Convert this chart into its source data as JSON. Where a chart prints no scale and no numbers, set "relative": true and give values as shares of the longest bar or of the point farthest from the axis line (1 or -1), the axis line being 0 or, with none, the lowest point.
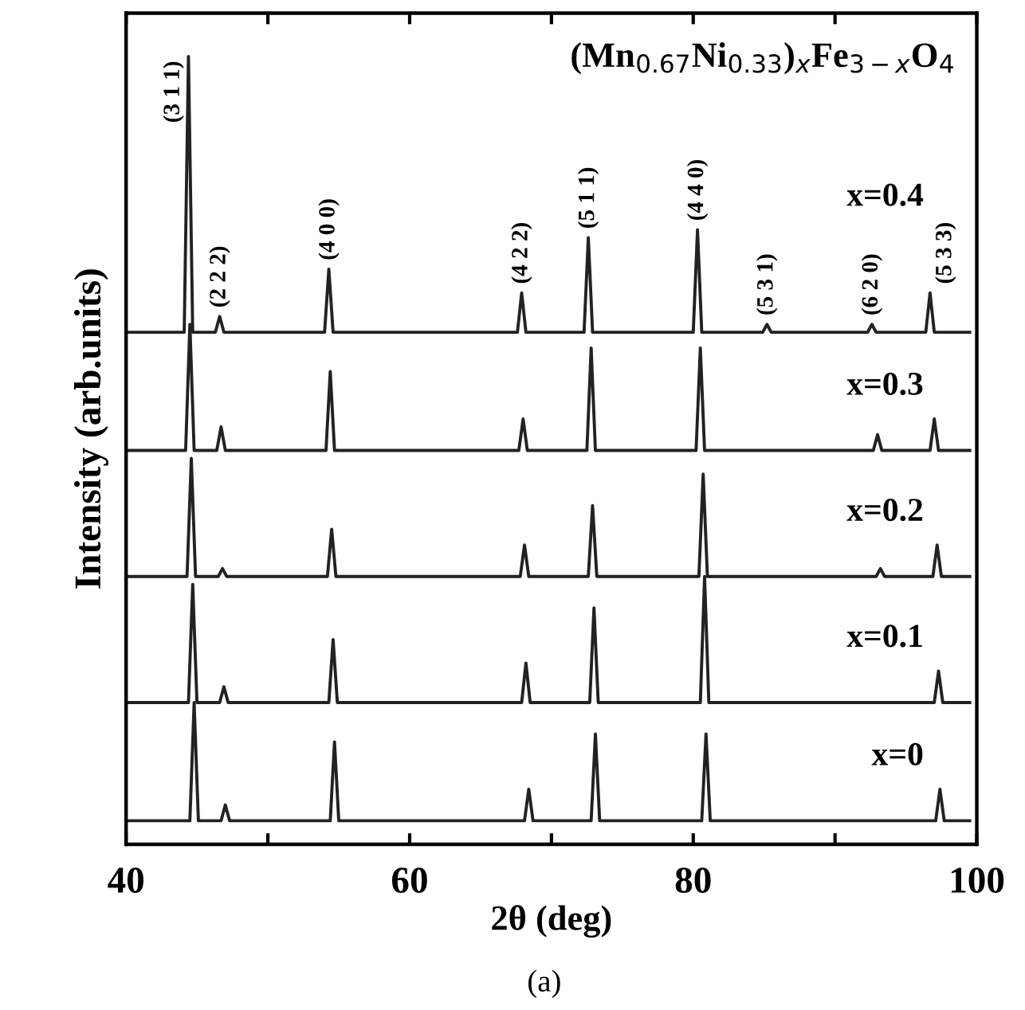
{
  "chart_data": {
    "type": "line",
    "relative": true,
    "title": "(Mn$_{0.67}$Ni$_{0.33}$)$_{x}$Fe$_{3−x}$O$_{4}$",
    "xlabel": "2θ (deg)",
    "ylabel": "Intensity (arb.units)",
    "xlim": [
      40,
      100
    ],
    "xticks": [
      40,
      {
        "value": 50,
        "label": null
      },
      60,
      {
        "value": 70,
        "label": null
      },
      80,
      {
        "value": 90,
        "label": null
      },
      100
    ],
    "grid": false,
    "legend": false,
    "marker": "none",
    "line_style": "solid",
    "series": [
      {
        "name": "x=0.4",
        "color": "#222222",
        "x": [
          40,
          44.1,
          44.4,
          44.7,
          46.3,
          46.6,
          46.9,
          54.0,
          54.3,
          54.6,
          67.6,
          67.9,
          68.2,
          72.3,
          72.6,
          72.9,
          80.0,
          80.3,
          80.6,
          84.9,
          85.2,
          85.5,
          92.3,
          92.6,
          92.9,
          96.4,
          96.7,
          97.0,
          99.5
        ],
        "values": [
          0.65,
          0.65,
          1.0,
          0.65,
          0.65,
          0.67,
          0.65,
          0.65,
          0.73,
          0.65,
          0.65,
          0.7,
          0.65,
          0.65,
          0.77,
          0.65,
          0.65,
          0.78,
          0.65,
          0.65,
          0.66,
          0.65,
          0.65,
          0.66,
          0.65,
          0.65,
          0.7,
          0.65,
          0.65
        ]
      },
      {
        "name": "x=0.3",
        "color": "#222222",
        "x": [
          40,
          44.2,
          44.5,
          44.8,
          46.4,
          46.7,
          47.0,
          54.1,
          54.4,
          54.7,
          67.7,
          68.0,
          68.3,
          72.5,
          72.8,
          73.1,
          80.2,
          80.5,
          80.8,
          92.7,
          93.0,
          93.3,
          96.7,
          97.0,
          97.3,
          99.5
        ],
        "values": [
          0.5,
          0.5,
          0.66,
          0.5,
          0.5,
          0.53,
          0.5,
          0.5,
          0.6,
          0.5,
          0.5,
          0.54,
          0.5,
          0.5,
          0.63,
          0.5,
          0.5,
          0.63,
          0.5,
          0.5,
          0.52,
          0.5,
          0.5,
          0.54,
          0.5,
          0.5
        ]
      },
      {
        "name": "x=0.2",
        "color": "#222222",
        "x": [
          40,
          44.3,
          44.6,
          44.9,
          46.5,
          46.8,
          47.1,
          54.2,
          54.5,
          54.8,
          67.8,
          68.1,
          68.4,
          72.6,
          72.9,
          73.2,
          80.4,
          80.7,
          81.0,
          92.9,
          93.2,
          93.5,
          96.9,
          97.2,
          97.5,
          99.5
        ],
        "values": [
          0.34,
          0.34,
          0.49,
          0.34,
          0.34,
          0.35,
          0.34,
          0.34,
          0.4,
          0.34,
          0.34,
          0.38,
          0.34,
          0.34,
          0.43,
          0.34,
          0.34,
          0.47,
          0.34,
          0.34,
          0.35,
          0.34,
          0.34,
          0.38,
          0.34,
          0.34
        ]
      },
      {
        "name": "x=0.1",
        "color": "#222222",
        "x": [
          40,
          44.4,
          44.7,
          45.0,
          46.6,
          46.9,
          47.2,
          54.3,
          54.6,
          54.9,
          67.9,
          68.2,
          68.5,
          72.7,
          73.0,
          73.3,
          80.5,
          80.8,
          81.1,
          97.0,
          97.3,
          97.6,
          99.5
        ],
        "values": [
          0.18,
          0.18,
          0.33,
          0.18,
          0.18,
          0.2,
          0.18,
          0.18,
          0.26,
          0.18,
          0.18,
          0.23,
          0.18,
          0.18,
          0.3,
          0.18,
          0.18,
          0.34,
          0.18,
          0.18,
          0.22,
          0.18,
          0.18
        ]
      },
      {
        "name": "x=0",
        "color": "#222222",
        "x": [
          40,
          44.5,
          44.8,
          45.1,
          46.7,
          47.0,
          47.3,
          54.4,
          54.7,
          55.0,
          68.1,
          68.4,
          68.7,
          72.8,
          73.1,
          73.4,
          80.6,
          80.9,
          81.2,
          97.1,
          97.4,
          97.7,
          99.5
        ],
        "values": [
          0.03,
          0.03,
          0.18,
          0.03,
          0.03,
          0.05,
          0.03,
          0.03,
          0.13,
          0.03,
          0.03,
          0.07,
          0.03,
          0.03,
          0.14,
          0.03,
          0.03,
          0.14,
          0.03,
          0.03,
          0.07,
          0.03,
          0.03
        ]
      }
    ],
    "annotations": [
      {
        "text": "(3 1 1)",
        "x": 44.4,
        "y": 1.0
      },
      {
        "text": "(2 2 2)",
        "x": 46.6,
        "y": 0.67
      },
      {
        "text": "(4 0 0)",
        "x": 54.3,
        "y": 0.73
      },
      {
        "text": "(4 2 2)",
        "x": 67.9,
        "y": 0.7
      },
      {
        "text": "(5 1 1)",
        "x": 72.6,
        "y": 0.77
      },
      {
        "text": "(4 4 0)",
        "x": 80.3,
        "y": 0.78
      },
      {
        "text": "(5 3 1)",
        "x": 85.2,
        "y": 0.66
      },
      {
        "text": "(6 2 0)",
        "x": 92.6,
        "y": 0.66
      },
      {
        "text": "(5 3 3)",
        "x": 96.7,
        "y": 0.7
      },
      "(a)"
    ]
  }
}
